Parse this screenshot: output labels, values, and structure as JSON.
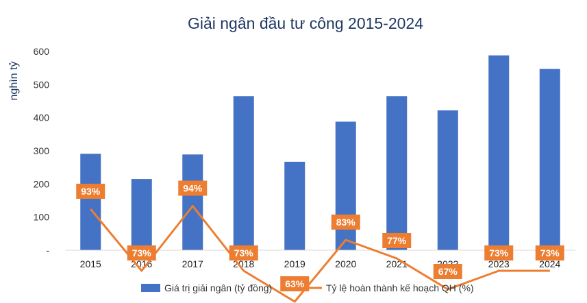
{
  "chart_data": {
    "type": "bar",
    "title": "Giải ngân đầu tư công 2015-2024",
    "ylabel": "nghìn tỷ",
    "xlabel": "",
    "categories": [
      "2015",
      "2016",
      "2017",
      "2018",
      "2019",
      "2020",
      "2021",
      "2022",
      "2023",
      "2024"
    ],
    "ylim": [
      0,
      600
    ],
    "yticks": [
      {
        "value": 0,
        "label": "-"
      },
      {
        "value": 100,
        "label": "100"
      },
      {
        "value": 200,
        "label": "200"
      },
      {
        "value": 300,
        "label": "300"
      },
      {
        "value": 400,
        "label": "400"
      },
      {
        "value": 500,
        "label": "500"
      },
      {
        "value": 600,
        "label": "600"
      }
    ],
    "grid": false,
    "legend_position": "bottom",
    "series": [
      {
        "name": "Giá trị giải ngân (tỷ đồng)",
        "type": "bar",
        "color": "#4472c4",
        "values": [
          291,
          215,
          289,
          465,
          267,
          388,
          465,
          422,
          588,
          547
        ]
      },
      {
        "name": "Tỷ lệ hoàn thành kế hoạch QH (%)",
        "type": "line",
        "color": "#ed7d31",
        "values": [
          93,
          73,
          94,
          73,
          63,
          83,
          77,
          67,
          73,
          73
        ],
        "labels": [
          "93%",
          "73%",
          "94%",
          "73%",
          "63%",
          "83%",
          "77%",
          "67%",
          "73%",
          "73%"
        ]
      }
    ]
  }
}
